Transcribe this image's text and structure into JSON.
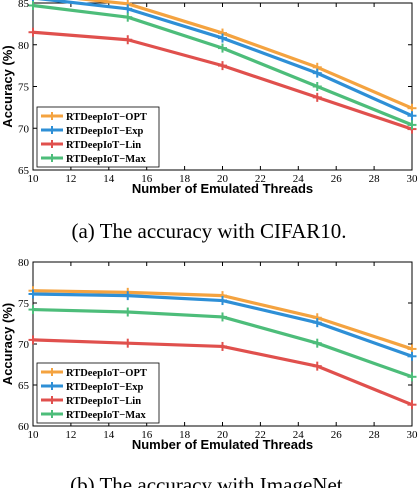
{
  "colors": {
    "OPT": "#f4a340",
    "Exp": "#2e8fd6",
    "Lin": "#e0504d",
    "Max": "#4dbd7a"
  },
  "chart_data": [
    {
      "type": "line",
      "caption": "(a) The accuracy with CIFAR10.",
      "xlabel": "Number of Emulated Threads",
      "ylabel": "Accuracy (%)",
      "xlim": [
        10,
        30
      ],
      "ylim": [
        65,
        85
      ],
      "xticks": [
        10,
        12,
        14,
        16,
        18,
        20,
        22,
        24,
        26,
        28,
        30
      ],
      "yticks": [
        65,
        70,
        75,
        80,
        85
      ],
      "grid": false,
      "legend_position": "bottom-left",
      "x": [
        10,
        15,
        20,
        25,
        30
      ],
      "series": [
        {
          "name": "RTDeepIoT−OPT",
          "key": "OPT",
          "values": [
            86.1,
            84.9,
            81.4,
            77.3,
            72.4
          ]
        },
        {
          "name": "RTDeepIoT−Exp",
          "key": "Exp",
          "values": [
            85.6,
            84.3,
            80.8,
            76.6,
            71.5
          ]
        },
        {
          "name": "RTDeepIoT−Lin",
          "key": "Lin",
          "values": [
            81.5,
            80.6,
            77.5,
            73.7,
            69.9
          ]
        },
        {
          "name": "RTDeepIoT−Max",
          "key": "Max",
          "values": [
            84.7,
            83.3,
            79.6,
            75.0,
            70.4
          ]
        }
      ]
    },
    {
      "type": "line",
      "caption": "(b) The accuracy with ImageNet.",
      "xlabel": "Number of Emulated Threads",
      "ylabel": "Accuracy (%)",
      "xlim": [
        10,
        30
      ],
      "ylim": [
        60,
        80
      ],
      "xticks": [
        10,
        12,
        14,
        16,
        18,
        20,
        22,
        24,
        26,
        28,
        30
      ],
      "yticks": [
        60,
        65,
        70,
        75,
        80
      ],
      "grid": false,
      "legend_position": "bottom-left",
      "x": [
        10,
        15,
        20,
        25,
        30
      ],
      "series": [
        {
          "name": "RTDeepIoT−OPT",
          "key": "OPT",
          "values": [
            76.5,
            76.3,
            75.9,
            73.2,
            69.4
          ]
        },
        {
          "name": "RTDeepIoT−Exp",
          "key": "Exp",
          "values": [
            76.1,
            75.9,
            75.3,
            72.6,
            68.5
          ]
        },
        {
          "name": "RTDeepIoT−Lin",
          "key": "Lin",
          "values": [
            70.5,
            70.1,
            69.7,
            67.3,
            62.6
          ]
        },
        {
          "name": "RTDeepIoT−Max",
          "key": "Max",
          "values": [
            74.2,
            73.9,
            73.3,
            70.1,
            66.0
          ]
        }
      ]
    }
  ]
}
